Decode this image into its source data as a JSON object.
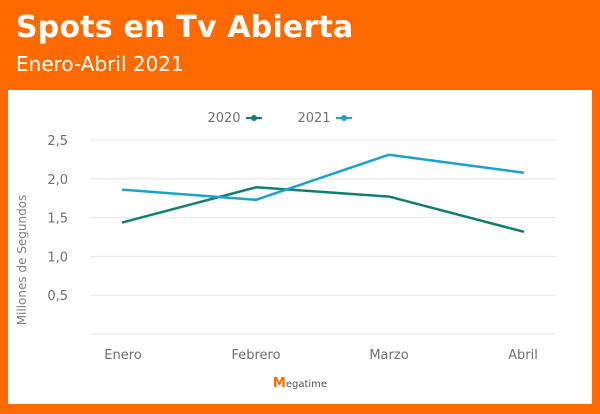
{
  "header": {
    "title": "Spots en Tv Abierta",
    "subtitle": "Enero-Abril 2021"
  },
  "branding": {
    "logo_text": "egatime",
    "logo_mark": "M"
  },
  "colors": {
    "frame": "#ff6a00",
    "series_2020": "#0f7f6e",
    "series_2021": "#19a3c4",
    "grid": "#e6e6e6"
  },
  "chart_data": {
    "type": "line",
    "categories": [
      "Enero",
      "Febrero",
      "Marzo",
      "Abril"
    ],
    "series": [
      {
        "name": "2020",
        "values": [
          1.44,
          1.89,
          1.77,
          1.32
        ]
      },
      {
        "name": "2021",
        "values": [
          1.86,
          1.73,
          2.31,
          2.08
        ]
      }
    ],
    "yticks": [
      "0,5",
      "1,0",
      "1,5",
      "2,0",
      "2,5"
    ],
    "ytick_values": [
      0.5,
      1.0,
      1.5,
      2.0,
      2.5
    ],
    "ylabel": "Millones de Segundos",
    "ylim": [
      0,
      2.5
    ],
    "grid": true,
    "legend_position": "top-center"
  }
}
